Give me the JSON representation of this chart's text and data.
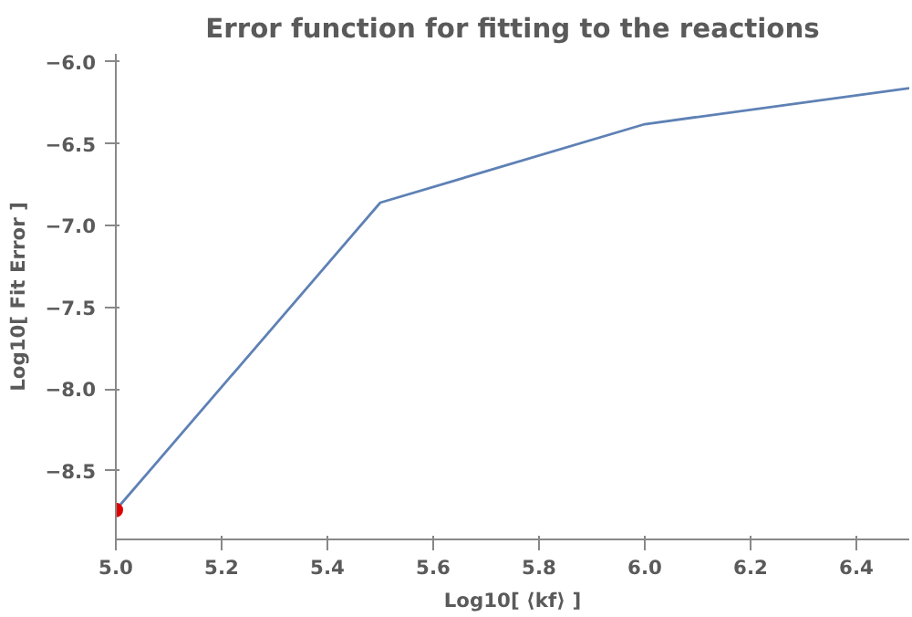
{
  "chart_data": {
    "type": "line",
    "title": "Error function for fitting to the reactions",
    "xlabel": "Log10[ ⟨kf⟩ ]",
    "ylabel": "Log10[ Fit Error ]",
    "xlim": [
      5.0,
      6.5
    ],
    "ylim": [
      -8.92,
      -5.95
    ],
    "xticks": [
      {
        "value": 5,
        "label": "5.0"
      },
      5.2,
      5.4,
      5.6,
      5.8,
      {
        "value": 6,
        "label": "6.0"
      },
      6.2,
      6.4
    ],
    "yticks": [
      -8.5,
      {
        "value": -8,
        "label": "−8.0"
      },
      -7.5,
      {
        "value": -7,
        "label": "−7.0"
      },
      -6.5,
      {
        "value": -6,
        "label": "−6.0"
      }
    ],
    "grid": false,
    "series": [
      {
        "color": "#5e81b5",
        "x": [
          5.0,
          5.5,
          6.0,
          6.5
        ],
        "values": [
          -8.74,
          -6.86,
          -6.38,
          -6.16
        ]
      },
      {
        "type": "scatter",
        "color": "#e00000",
        "marker": "circle",
        "x": [
          5.0
        ],
        "values": [
          -8.74
        ]
      }
    ]
  }
}
